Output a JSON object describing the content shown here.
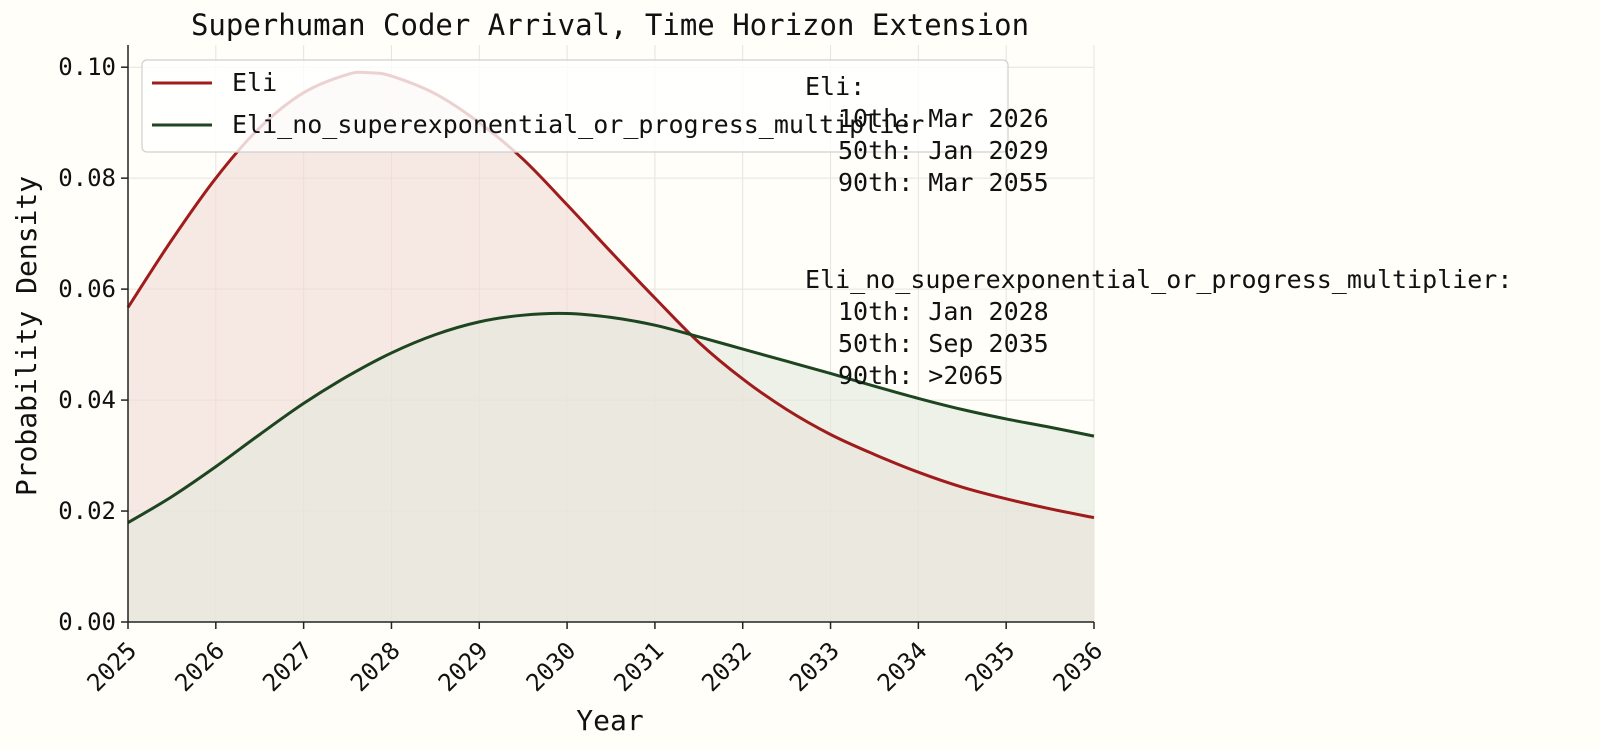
{
  "chart_data": {
    "type": "area",
    "title": "Superhuman Coder Arrival, Time Horizon Extension",
    "xlabel": "Year",
    "ylabel": "Probability Density",
    "xlim": [
      2025,
      2036
    ],
    "ylim": [
      0,
      0.104
    ],
    "xticks": [
      2025,
      2026,
      2027,
      2028,
      2029,
      2030,
      2031,
      2032,
      2033,
      2034,
      2035,
      2036
    ],
    "yticks": [
      0.0,
      0.02,
      0.04,
      0.06,
      0.08,
      0.1
    ],
    "ytick_labels": [
      "0.00",
      "0.02",
      "0.04",
      "0.06",
      "0.08",
      "0.10"
    ],
    "grid": true,
    "legend_position": "top-left",
    "series": [
      {
        "name": "Eli",
        "color": "#a01c1c",
        "fill": "#f1dad5",
        "x": [
          2025,
          2025.5,
          2026,
          2026.5,
          2027,
          2027.5,
          2027.75,
          2028,
          2028.5,
          2029,
          2029.5,
          2030,
          2030.5,
          2031,
          2031.5,
          2032,
          2032.5,
          2033,
          2033.5,
          2034,
          2034.5,
          2035,
          2035.5,
          2036
        ],
        "values": [
          0.0567,
          0.0689,
          0.08,
          0.0891,
          0.0954,
          0.0987,
          0.099,
          0.0984,
          0.0952,
          0.09,
          0.0834,
          0.0752,
          0.0667,
          0.0584,
          0.0504,
          0.0438,
          0.0383,
          0.0338,
          0.0302,
          0.027,
          0.0243,
          0.0222,
          0.0204,
          0.0188
        ]
      },
      {
        "name": "Eli_no_superexponential_or_progress_multiplier",
        "color": "#1d4520",
        "fill": "#e4e8dd",
        "x": [
          2025,
          2025.5,
          2026,
          2026.5,
          2027,
          2027.5,
          2028,
          2028.5,
          2029,
          2029.5,
          2030,
          2030.5,
          2031,
          2031.5,
          2032,
          2032.5,
          2033,
          2033.5,
          2034,
          2034.5,
          2035,
          2035.5,
          2036
        ],
        "values": [
          0.0179,
          0.0226,
          0.028,
          0.0338,
          0.0394,
          0.0443,
          0.0485,
          0.0518,
          0.0541,
          0.0553,
          0.0556,
          0.0549,
          0.0535,
          0.0514,
          0.0492,
          0.047,
          0.0448,
          0.0425,
          0.0403,
          0.0383,
          0.0366,
          0.0351,
          0.0335
        ]
      }
    ],
    "annotations": [
      {
        "heading": "Eli:",
        "lines": [
          "10th: Mar 2026",
          "50th: Jan 2029",
          "90th: Mar 2055"
        ]
      },
      {
        "heading": "Eli_no_superexponential_or_progress_multiplier:",
        "lines": [
          "10th: Jan 2028",
          "50th: Sep 2035",
          "90th: >2065"
        ]
      }
    ]
  }
}
